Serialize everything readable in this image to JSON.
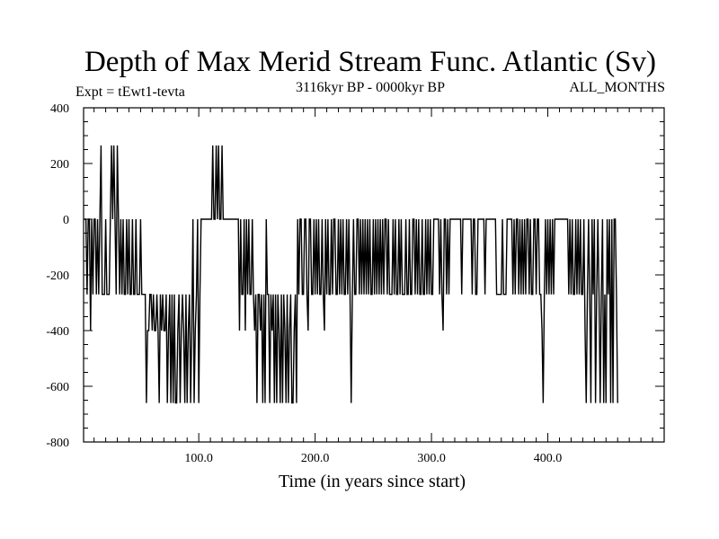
{
  "chart_data": {
    "type": "line",
    "title": "Depth of Max Merid Stream Func. Atlantic (Sv)",
    "subtitle_left": "Expt = tEwt1-tevta",
    "subtitle_center": "3116kyr BP - 0000kyr BP",
    "subtitle_right": "ALL_MONTHS",
    "xlabel": "Time (in years since start)",
    "ylabel": "",
    "xlim": [
      1,
      500
    ],
    "ylim": [
      -800,
      400
    ],
    "x_ticks": [
      100,
      200,
      300,
      400
    ],
    "x_tick_labels": [
      "100.0",
      "200.0",
      "300.0",
      "400.0"
    ],
    "y_ticks": [
      400,
      200,
      0,
      -200,
      -400,
      -600,
      -800
    ],
    "y_tick_labels": [
      "400",
      "200",
      "0",
      "-200",
      "-400",
      "-600",
      "-800"
    ],
    "grid": false,
    "legend": "none",
    "line_color": "#000000",
    "series": [
      {
        "x_start": 1,
        "x_step": 1,
        "values": [
          0,
          0,
          0,
          -270,
          0,
          0,
          -400,
          0,
          -270,
          0,
          0,
          -270,
          0,
          -270,
          0,
          265,
          -270,
          -270,
          -270,
          0,
          -270,
          -270,
          -270,
          0,
          265,
          0,
          265,
          0,
          -270,
          265,
          0,
          -270,
          0,
          -270,
          0,
          -270,
          -270,
          0,
          -270,
          0,
          -270,
          -270,
          0,
          -270,
          -270,
          0,
          -270,
          -270,
          -270,
          0,
          -270,
          -270,
          -270,
          -270,
          -660,
          -400,
          -400,
          -270,
          -270,
          -400,
          -270,
          -400,
          -400,
          -270,
          -400,
          -660,
          -270,
          -400,
          -270,
          -400,
          -400,
          -270,
          -660,
          -400,
          -270,
          -660,
          -270,
          -660,
          -270,
          -660,
          -660,
          -400,
          -270,
          -660,
          -400,
          -270,
          -400,
          -660,
          -270,
          -660,
          -400,
          -270,
          -660,
          -400,
          0,
          -660,
          -400,
          -270,
          0,
          -660,
          -270,
          0,
          0,
          0,
          0,
          0,
          0,
          0,
          0,
          0,
          0,
          265,
          0,
          0,
          265,
          0,
          265,
          0,
          0,
          265,
          0,
          0,
          0,
          0,
          0,
          0,
          0,
          0,
          0,
          0,
          0,
          0,
          0,
          0,
          -400,
          0,
          -270,
          -270,
          0,
          -400,
          0,
          -270,
          0,
          -270,
          -270,
          0,
          -270,
          -400,
          -270,
          -660,
          -270,
          -270,
          -400,
          -270,
          -660,
          -270,
          -660,
          0,
          -270,
          -270,
          -660,
          -270,
          -400,
          -270,
          -660,
          -270,
          -660,
          -270,
          -400,
          -660,
          -270,
          -660,
          -270,
          -400,
          -660,
          -270,
          -660,
          -400,
          -270,
          -660,
          -660,
          -400,
          -270,
          -660,
          0,
          -270,
          0,
          0,
          -270,
          -270,
          0,
          0,
          -270,
          -400,
          0,
          0,
          -270,
          -270,
          0,
          -270,
          0,
          -270,
          0,
          -270,
          -270,
          0,
          -270,
          -400,
          0,
          -270,
          0,
          -270,
          -270,
          0,
          -270,
          0,
          0,
          -270,
          -270,
          0,
          -270,
          0,
          -270,
          0,
          -270,
          -270,
          0,
          -270,
          0,
          -270,
          -660,
          -270,
          0,
          -270,
          -270,
          0,
          0,
          -270,
          0,
          -270,
          0,
          -270,
          0,
          -270,
          0,
          -270,
          0,
          -270,
          -270,
          0,
          -270,
          0,
          -270,
          0,
          -270,
          0,
          -270,
          0,
          -270,
          0,
          0,
          -270,
          0,
          -270,
          -270,
          -270,
          0,
          -270,
          0,
          -270,
          -270,
          0,
          -270,
          0,
          -270,
          -270,
          -270,
          0,
          -270,
          -270,
          0,
          -270,
          -270,
          0,
          0,
          -270,
          0,
          -270,
          0,
          -270,
          -270,
          0,
          -270,
          -270,
          0,
          -270,
          0,
          -270,
          0,
          -270,
          -270,
          0,
          0,
          0,
          0,
          0,
          -270,
          0,
          -270,
          -400,
          0,
          0,
          -270,
          0,
          -270,
          0,
          0,
          0,
          0,
          0,
          0,
          0,
          0,
          0,
          0,
          -270,
          0,
          0,
          0,
          0,
          0,
          0,
          0,
          0,
          -270,
          0,
          0,
          -270,
          -270,
          0,
          0,
          0,
          0,
          0,
          0,
          -270,
          0,
          0,
          0,
          0,
          0,
          0,
          0,
          0,
          0,
          -270,
          -270,
          -270,
          -270,
          -270,
          0,
          -270,
          -270,
          -270,
          0,
          0,
          0,
          0,
          0,
          -270,
          0,
          -270,
          0,
          0,
          -270,
          0,
          -270,
          0,
          -270,
          0,
          -270,
          0,
          0,
          -270,
          0,
          -270,
          -270,
          0,
          0,
          -270,
          0,
          0,
          -270,
          -270,
          -400,
          -660,
          -270,
          0,
          -270,
          0,
          -270,
          0,
          -270,
          0,
          -270,
          0,
          0,
          0,
          0,
          0,
          0,
          0,
          0,
          0,
          0,
          0,
          0,
          -270,
          0,
          -270,
          0,
          -270,
          -270,
          0,
          -270,
          0,
          -270,
          0,
          -270,
          -270,
          0,
          -400,
          -660,
          -270,
          0,
          -270,
          -660,
          0,
          -270,
          0,
          -660,
          -270,
          0,
          -270,
          -660,
          -270,
          0,
          -660,
          -270,
          -660,
          0,
          -270,
          0,
          -660,
          0,
          -660,
          0,
          0,
          -270,
          -660
        ]
      }
    ]
  }
}
